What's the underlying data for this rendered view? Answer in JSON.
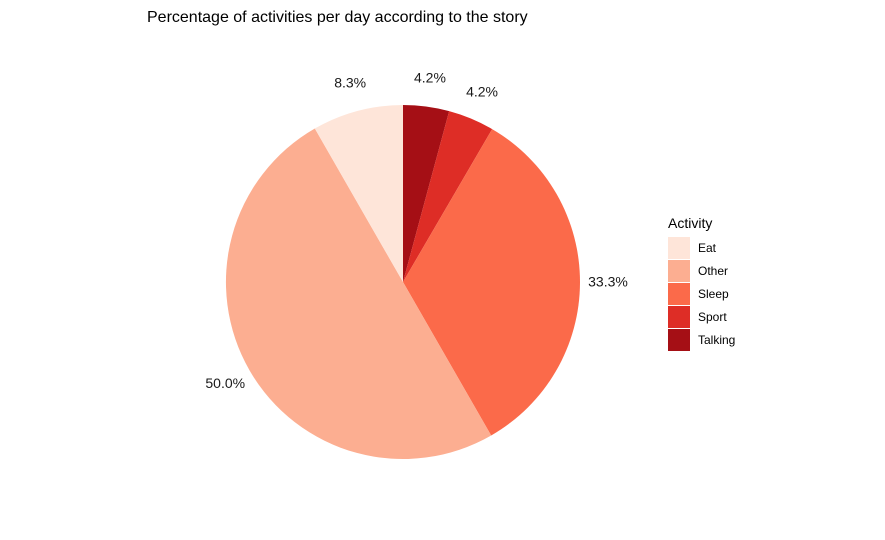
{
  "chart_data": {
    "type": "pie",
    "title": "Percentage of activities per day according to the story",
    "legend_title": "Activity",
    "legend_position": "right",
    "slices": [
      {
        "label": "Talking",
        "value": 4.2,
        "display": "4.2%",
        "color": "#a50f15"
      },
      {
        "label": "Sport",
        "value": 4.2,
        "display": "4.2%",
        "color": "#de2d26"
      },
      {
        "label": "Sleep",
        "value": 33.3,
        "display": "33.3%",
        "color": "#fb6a4a"
      },
      {
        "label": "Other",
        "value": 50.0,
        "display": "50.0%",
        "color": "#fcae91"
      },
      {
        "label": "Eat",
        "value": 8.3,
        "display": "8.3%",
        "color": "#fee5d9"
      }
    ],
    "legend_order": [
      "Eat",
      "Other",
      "Sleep",
      "Sport",
      "Talking"
    ]
  }
}
